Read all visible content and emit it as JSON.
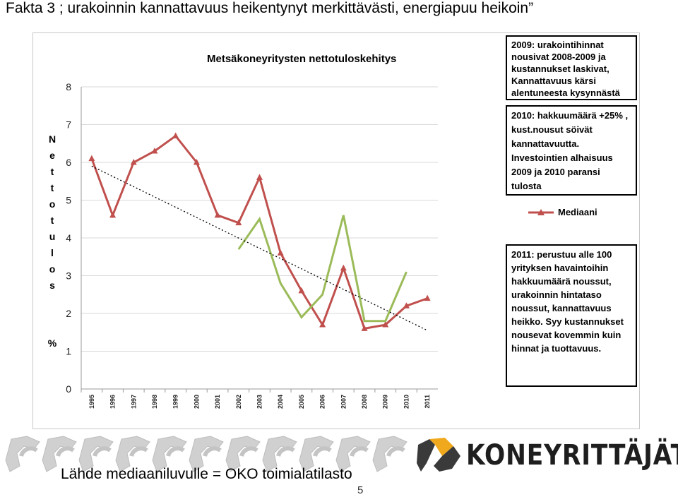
{
  "slide": {
    "title": "Fakta 3 ; urakoinnin kannattavuus heikentynyt merkittävästi, energiapuu heikoin”",
    "source": "Lähde mediaaniluvulle = OKO toimialatilasto",
    "page_number": "5",
    "brand": "KONEYRITTÄJÄT"
  },
  "notes": {
    "note_2009": "2009: urakointihinnat nousivat 2008-2009 ja kustannukset laskivat, Kannattavuus kärsi alentuneesta kysynnästä",
    "note_2010": "2010: hakkuumäärä +25% , kust.nousut söivät kannattavuutta. Investointien alhaisuus 2009 ja 2010 paransi tulosta",
    "note_2011": "2011: perustuu alle 100 yrityksen havaintoihin hakkuumäärä noussut, urakoinnin hintataso noussut, kannattavuus heikko. Syy kustannukset nousevat kovemmin kuin hinnat ja tuottavuus."
  },
  "colors": {
    "median": "#c0504d",
    "energy": "#9bbb59",
    "trend": "#000000",
    "grid": "#d9d9d9"
  },
  "chart_data": {
    "type": "line",
    "title": "Metsäkoneyritysten nettotuloskehitys",
    "ylabel": "Nettotulos %",
    "ylabel_letters": [
      "N",
      "e",
      "t",
      "t",
      "o",
      "t",
      "u",
      "l",
      "o",
      "s"
    ],
    "ylabel_unit": "%",
    "ylim": [
      0,
      8
    ],
    "yticks": [
      "0",
      "1",
      "2",
      "3",
      "4",
      "5",
      "6",
      "7",
      "8"
    ],
    "grid": true,
    "x": [
      "1995",
      "1996",
      "1997",
      "1998",
      "1999",
      "2000",
      "2001",
      "2002",
      "2003",
      "2004",
      "2005",
      "2006",
      "2007",
      "2008",
      "2009",
      "2010",
      "2011"
    ],
    "series": [
      {
        "name": "Mediaani",
        "color": "#c0504d",
        "marker": "triangle",
        "values": [
          6.1,
          4.6,
          6.0,
          6.3,
          6.7,
          6.0,
          4.6,
          4.4,
          5.6,
          3.6,
          2.6,
          1.7,
          3.2,
          1.6,
          1.7,
          2.2,
          2.4
        ]
      },
      {
        "color": "#9bbb59",
        "marker": "none",
        "values": [
          null,
          null,
          null,
          null,
          null,
          null,
          null,
          3.7,
          4.5,
          2.8,
          1.9,
          2.5,
          4.6,
          1.8,
          1.8,
          3.1,
          null
        ]
      },
      {
        "color": "#000000",
        "style": "dotted",
        "trendline": true,
        "values": [
          5.9,
          null,
          null,
          null,
          null,
          null,
          null,
          null,
          null,
          null,
          null,
          null,
          null,
          null,
          null,
          null,
          1.55
        ]
      }
    ],
    "legend": [
      "Mediaani"
    ]
  }
}
